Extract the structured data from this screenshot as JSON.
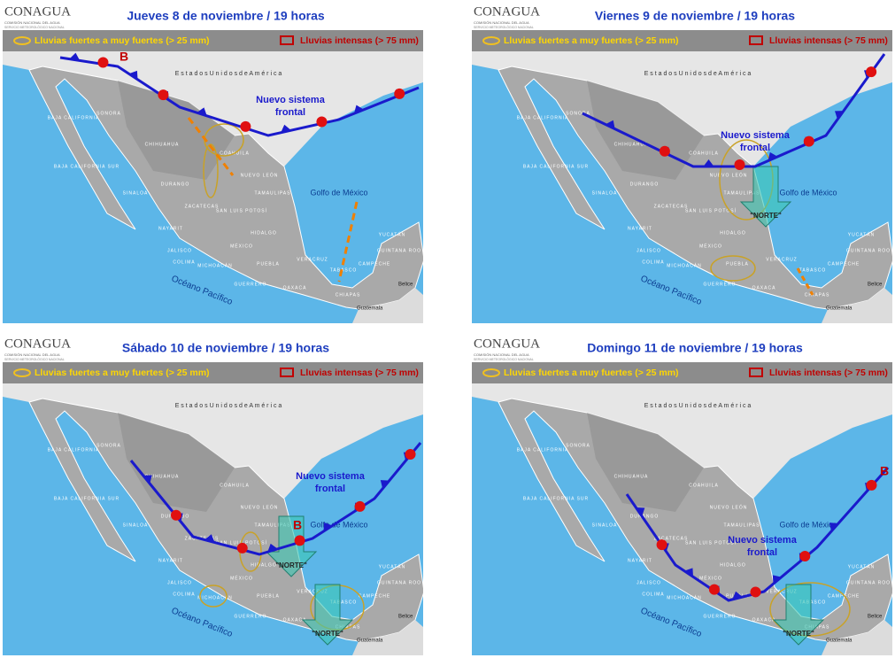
{
  "header": {
    "logo": "CONAGUA",
    "agency": "COMISIÓN NACIONAL DEL AGUA",
    "service": "SERVICIO METEOROLÓGICO NACIONAL"
  },
  "legend": {
    "heavy": "Lluvias fuertes a muy fuertes  (> 25 mm)",
    "intense": "Lluvias intensas (> 75 mm)"
  },
  "map_labels": {
    "usa": "E s t a d o s   U n i d o s   d e   A m é r i c a",
    "gulf": "Golfo de México",
    "pacific": "Océano Pacífico",
    "belize": "Belice",
    "guatemala": "Guatemala",
    "states": [
      "SONORA",
      "CHIHUAHUA",
      "COAHUILA",
      "NUEVO LEÓN",
      "TAMAULIPAS",
      "DURANGO",
      "SINALOA",
      "ZACATECAS",
      "SAN LUIS POTOSÍ",
      "NAYARIT",
      "JALISCO",
      "COLIMA",
      "MICHOACÁN",
      "GUERRERO",
      "OAXACA",
      "CHIAPAS",
      "TABASCO",
      "CAMPECHE",
      "YUCATÁN",
      "QUINTANA ROO",
      "VERACRUZ",
      "PUEBLA",
      "HIDALGO",
      "BAJA CALIFORNIA",
      "BAJA CALIFORNIA SUR",
      "MÉXICO"
    ]
  },
  "panels": [
    {
      "title": "Jueves 8 de noviembre / 19 horas",
      "front_label": [
        "Nuevo sistema",
        "frontal"
      ],
      "low": "B"
    },
    {
      "title": "Viernes 9 de noviembre / 19 horas",
      "front_label": [
        "Nuevo sistema",
        "frontal"
      ],
      "norte": [
        "\"NORTE\""
      ]
    },
    {
      "title": "Sábado 10 de noviembre / 19 horas",
      "front_label": [
        "Nuevo sistema",
        "frontal"
      ],
      "low": "B",
      "norte": [
        "\"NORTE\"",
        "\"NORTE\""
      ]
    },
    {
      "title": "Domingo 11 de noviembre / 19 horas",
      "front_label": [
        "Nuevo sistema",
        "frontal"
      ],
      "low": "B",
      "norte": [
        "\"NORTE\""
      ]
    }
  ]
}
